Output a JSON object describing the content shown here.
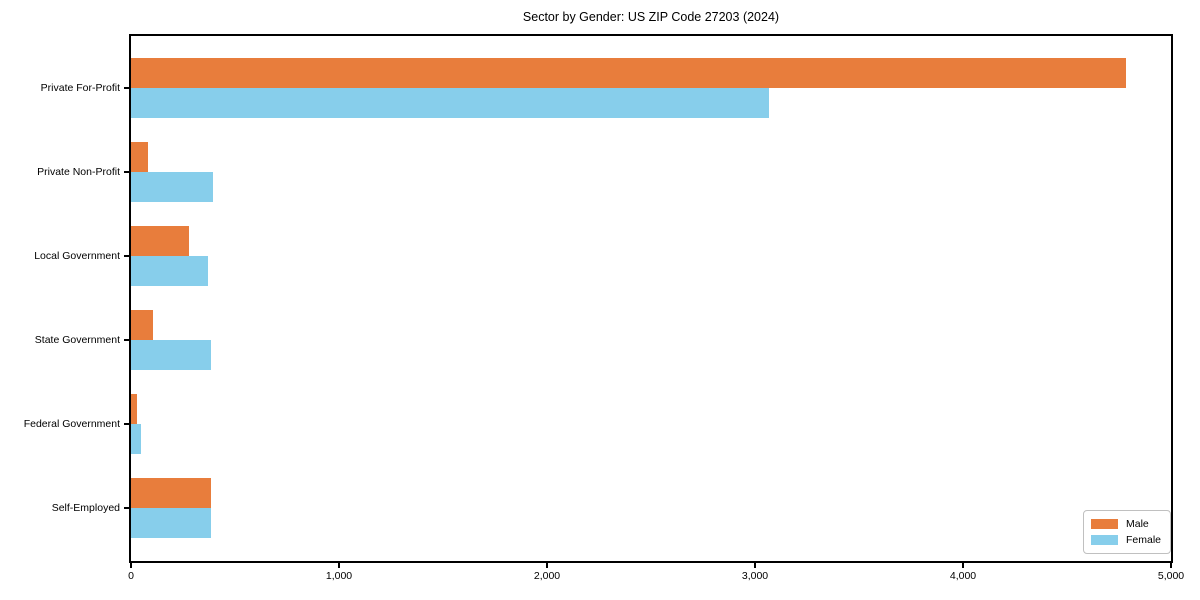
{
  "title": "Sector by Gender: US ZIP Code 27203 (2024)",
  "colors": {
    "male": "#e87d3c",
    "female": "#87ceeb",
    "axis": "#000000",
    "legend_border": "#c0c0c0",
    "background": "#ffffff"
  },
  "chart_data": {
    "type": "bar",
    "orientation": "horizontal",
    "title": "Sector by Gender: US ZIP Code 27203 (2024)",
    "categories": [
      "Private For-Profit",
      "Private Non-Profit",
      "Local Government",
      "State Government",
      "Federal Government",
      "Self-Employed"
    ],
    "series": [
      {
        "name": "Male",
        "color": "#e87d3c",
        "values": [
          4784,
          83,
          277,
          104,
          27,
          384
        ]
      },
      {
        "name": "Female",
        "color": "#87ceeb",
        "values": [
          3067,
          395,
          371,
          387,
          48,
          384
        ]
      }
    ],
    "xlabel": "",
    "ylabel": "",
    "xlim": [
      0,
      5000
    ],
    "x_ticks": [
      0,
      1000,
      2000,
      3000,
      4000,
      5000
    ],
    "x_tick_labels": [
      "0",
      "1,000",
      "2,000",
      "3,000",
      "4,000",
      "5,000"
    ],
    "grid": false,
    "legend": {
      "position": "lower right",
      "entries": [
        "Male",
        "Female"
      ]
    }
  }
}
